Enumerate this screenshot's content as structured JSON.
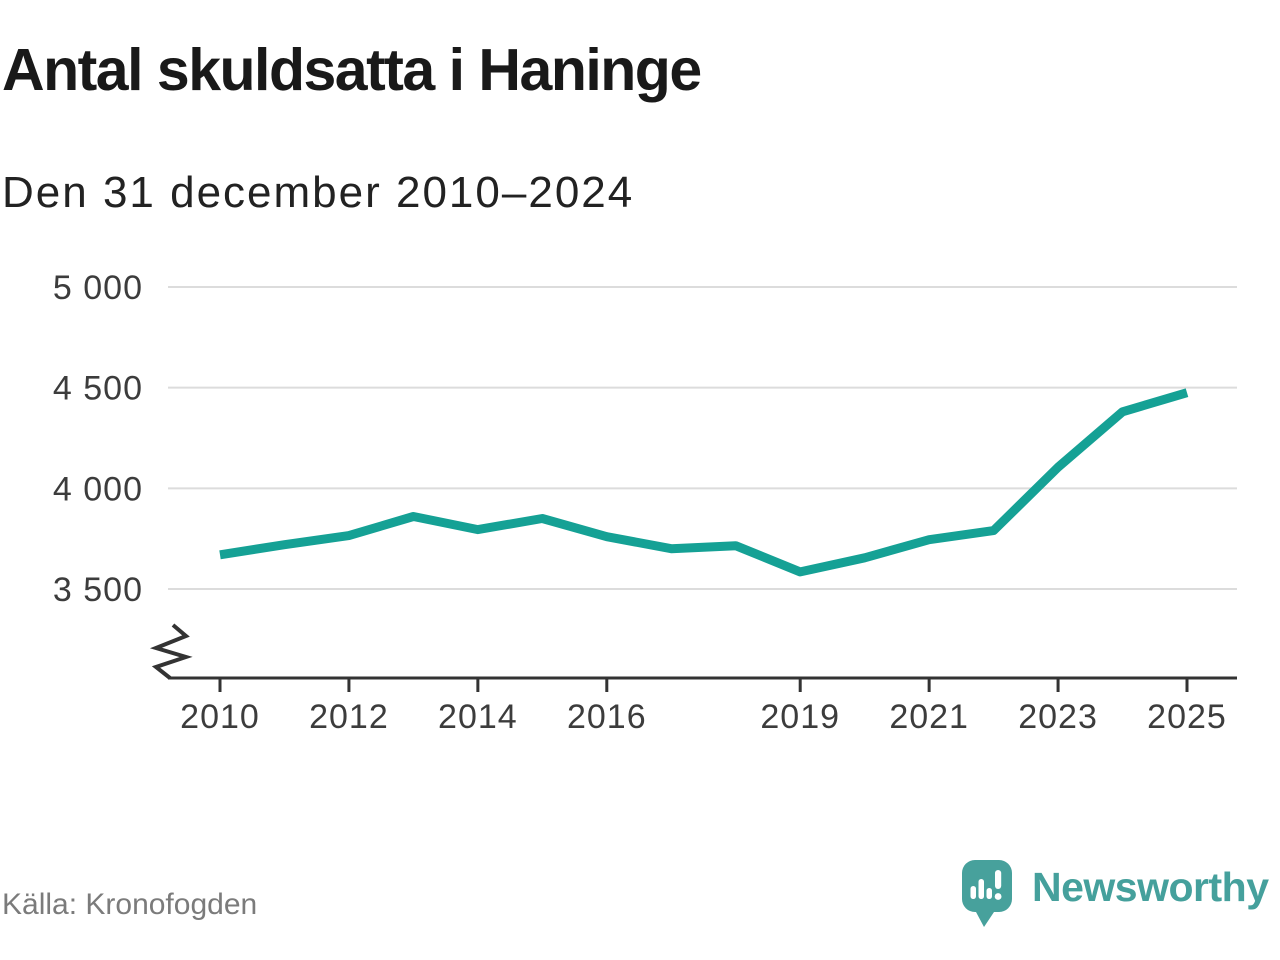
{
  "header": {
    "title": "Antal skuldsatta i Haninge",
    "subtitle": "Den 31 december 2010–2024"
  },
  "footer": {
    "source": "Källa: Kronofogden",
    "brand": "Newsworthy",
    "logo_icon": "newsworthy-speech-bubble-bar-chart-icon"
  },
  "colors": {
    "line_teal": "#15a195",
    "brand_teal": "#47a19c",
    "grid_gray": "#dcdcdc",
    "axis_dark": "#333333",
    "tick_text": "#3c3c3c",
    "title_text": "#191919",
    "source_text": "#7b7b7b"
  },
  "chart_data": {
    "type": "line",
    "title": "Antal skuldsatta i Haninge",
    "subtitle": "Den 31 december 2010–2024",
    "source": "Källa: Kronofogden",
    "series": [
      {
        "name": "Antal skuldsatta",
        "x": [
          2010,
          2011,
          2012,
          2013,
          2014,
          2015,
          2016,
          2017,
          2018,
          2019,
          2020,
          2021,
          2022,
          2023,
          2024,
          2025
        ],
        "values": [
          3670,
          3720,
          3765,
          3860,
          3795,
          3850,
          3760,
          3700,
          3715,
          3585,
          3655,
          3745,
          3790,
          4105,
          4380,
          4475
        ]
      }
    ],
    "x_ticks": [
      2010,
      2012,
      2014,
      2016,
      2019,
      2021,
      2023,
      2025
    ],
    "x_tick_labels": [
      "2010",
      "2012",
      "2014",
      "2016",
      "2019",
      "2021",
      "2023",
      "2025"
    ],
    "y_ticks": [
      3500,
      4000,
      4500,
      5000
    ],
    "y_tick_labels": [
      "3 500",
      "4 000",
      "4 500",
      "5 000"
    ],
    "xlim": [
      2010,
      2025
    ],
    "ylim": [
      3500,
      5000
    ],
    "grid": "horizontal-only",
    "legend": "none",
    "y_axis_break": true,
    "line_color": "#15a195"
  }
}
